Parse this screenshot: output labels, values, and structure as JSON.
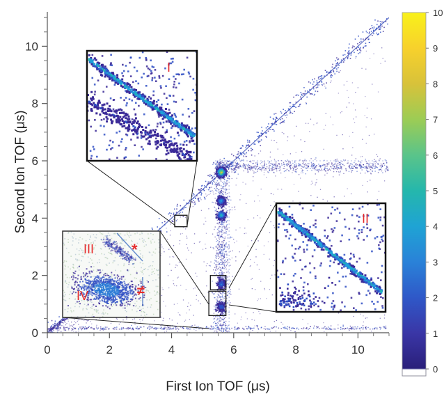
{
  "chart_data": {
    "type": "heatmap",
    "xlabel": "First Ion TOF (μs)",
    "ylabel": "Second Ion TOF (μs)",
    "xlim": [
      0,
      11
    ],
    "ylim": [
      0,
      11.2
    ],
    "x_ticks": [
      "0",
      "2",
      "4",
      "6",
      "8",
      "10"
    ],
    "y_ticks": [
      "0",
      "2",
      "4",
      "6",
      "8",
      "10"
    ],
    "grid": false,
    "colorbar": {
      "ticks": [
        "0",
        "1",
        "2",
        "3",
        "4",
        "5",
        "6",
        "7",
        "8",
        "9",
        "10"
      ],
      "range": [
        0,
        10
      ],
      "colors": [
        "#ffffff",
        "#3b2a98",
        "#2f4fc4",
        "#2a7ad6",
        "#1ea1d8",
        "#21b6b2",
        "#55c58a",
        "#95cc57",
        "#d2c43a",
        "#f6d42b",
        "#f9f11a"
      ]
    },
    "features": [
      {
        "kind": "diagonal",
        "x": [
          0,
          11
        ],
        "y": [
          0,
          11
        ]
      },
      {
        "kind": "vertical_band",
        "x": 5.6,
        "y": [
          0,
          6
        ]
      },
      {
        "kind": "horizontal_band",
        "y": 5.8,
        "x": [
          5.4,
          11
        ]
      },
      {
        "kind": "island",
        "x": 5.6,
        "y": 5.6,
        "intensity": 9
      },
      {
        "kind": "island",
        "x": 5.6,
        "y": 4.6,
        "intensity": 4
      },
      {
        "kind": "island",
        "x": 5.6,
        "y": 4.1,
        "intensity": 5
      },
      {
        "kind": "island",
        "x": 5.6,
        "y": 1.7,
        "intensity": 3
      },
      {
        "kind": "island",
        "x": 5.6,
        "y": 0.9,
        "intensity": 3
      }
    ],
    "zoom_boxes": [
      {
        "label": "I",
        "x": [
          4.1,
          4.5
        ],
        "y": [
          3.7,
          4.1
        ]
      },
      {
        "label": "II",
        "x": [
          5.25,
          5.75
        ],
        "y": [
          1.5,
          2.0
        ]
      },
      {
        "label": "",
        "x": [
          5.2,
          5.75
        ],
        "y": [
          0.6,
          1.45
        ]
      }
    ],
    "inset_labels": {
      "inset1": [
        "I"
      ],
      "inset2": [
        "II"
      ],
      "inset3": [
        "III",
        "*",
        "IV",
        "≠"
      ]
    }
  }
}
